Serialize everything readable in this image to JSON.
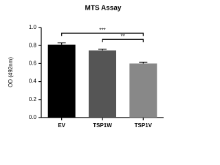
{
  "chart_data": {
    "type": "bar",
    "title": "MTS Assay",
    "y_label": "OD (492nm)",
    "categories": [
      "EV",
      "TSP1W",
      "TSP1V"
    ],
    "values": [
      0.81,
      0.745,
      0.6
    ],
    "errors": [
      0.02,
      0.015,
      0.015
    ],
    "colors": [
      "#000000",
      "#555555",
      "#888888"
    ],
    "ylim": [
      0,
      1.0
    ],
    "yticks": [
      {
        "value": 0,
        "label": "0.0"
      },
      0.2,
      0.4,
      0.6,
      0.8,
      {
        "value": 1.0,
        "label": "1.0"
      }
    ],
    "annotations": [
      {
        "text": "***",
        "between": [
          "EV",
          "TSP1V"
        ]
      },
      {
        "text": "**",
        "between": [
          "TSP1W",
          "TSP1V"
        ]
      }
    ]
  }
}
